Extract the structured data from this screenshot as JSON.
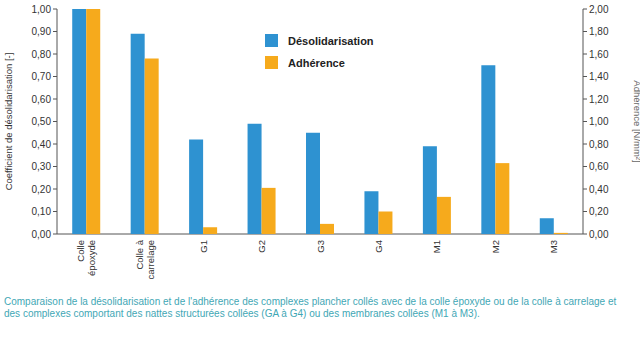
{
  "chart_data": {
    "type": "bar",
    "categories": [
      "Colle époxyde",
      "Colle à carrelage",
      "G1",
      "G2",
      "G3",
      "G4",
      "M1",
      "M2",
      "M3"
    ],
    "series": [
      {
        "name": "Désolidarisation",
        "color": "#2e92d1",
        "values": [
          1.0,
          0.89,
          0.42,
          0.49,
          0.45,
          0.19,
          0.39,
          0.75,
          0.07
        ]
      },
      {
        "name": "Adhérence",
        "color": "#f6aa1c",
        "axis": "y2",
        "values": [
          2.0,
          1.56,
          0.06,
          0.41,
          0.09,
          0.2,
          0.33,
          0.63,
          0.01
        ]
      }
    ],
    "y_label": "Coefficient de désolidarisation [-]",
    "y2_label": "Adhérence [N/mm²]",
    "ylim": [
      0,
      1
    ],
    "yticks": [
      {
        "value": 0,
        "label": "0,00"
      },
      {
        "value": 0.1,
        "label": "0,10"
      },
      {
        "value": 0.2,
        "label": "0,20"
      },
      {
        "value": 0.3,
        "label": "0,30"
      },
      {
        "value": 0.4,
        "label": "0,40"
      },
      {
        "value": 0.5,
        "label": "0,50"
      },
      {
        "value": 0.6,
        "label": "0,60"
      },
      {
        "value": 0.7,
        "label": "0,70"
      },
      {
        "value": 0.8,
        "label": "0,80"
      },
      {
        "value": 0.9,
        "label": "0,90"
      },
      {
        "value": 1,
        "label": "1,00"
      }
    ],
    "y2lim": [
      0,
      2
    ],
    "y2ticks": [
      {
        "value": 0,
        "label": "0,00"
      },
      {
        "value": 0.2,
        "label": "0,20"
      },
      {
        "value": 0.4,
        "label": "0,40"
      },
      {
        "value": 0.6,
        "label": "0,60"
      },
      {
        "value": 0.8,
        "label": "0,80"
      },
      {
        "value": 1,
        "label": "1,00"
      },
      {
        "value": 1.2,
        "label": "1,20"
      },
      {
        "value": 1.4,
        "label": "1,40"
      },
      {
        "value": 1.6,
        "label": "1,60"
      },
      {
        "value": 1.8,
        "label": "1,80"
      },
      {
        "value": 2,
        "label": "2,00"
      }
    ],
    "legend": "top",
    "grid": false,
    "annotations": [
      "Comparaison de la désolidarisation et de l'adhérence des complexes plancher collés avec de la colle époxyde ou de la colle à carrelage et des complexes comportant des nattes structurées collées (GA à G4) ou des membranes collées (M1 à M3)."
    ]
  }
}
